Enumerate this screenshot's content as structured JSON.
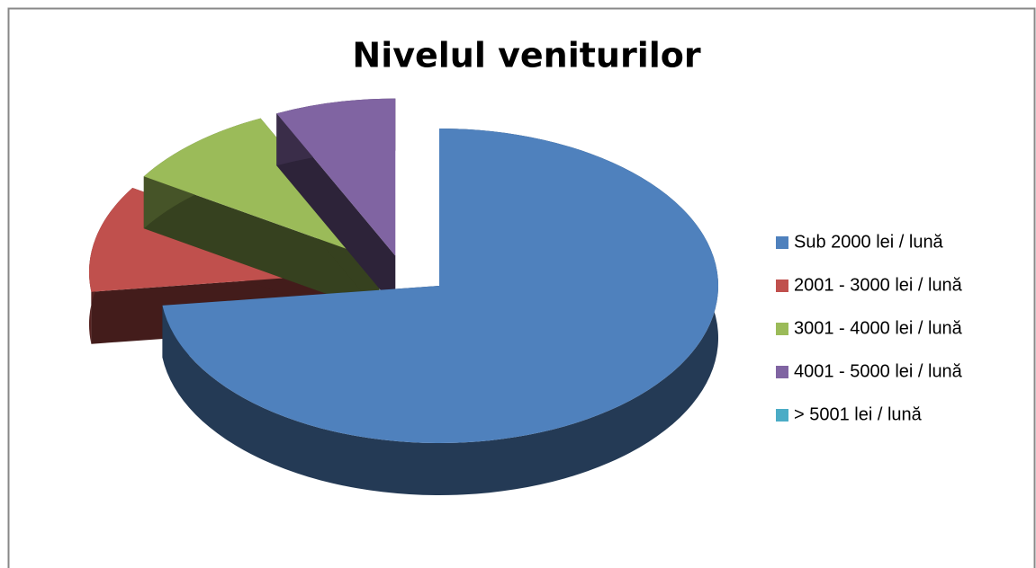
{
  "chart_data": {
    "type": "pie",
    "title": "Nivelul veniturilor",
    "categories": [
      "Sub 2000 lei / lună",
      "2001 - 3000 lei / lună",
      "3001 - 4000 lei / lună",
      "4001 - 5000 lei / lună",
      "> 5001 lei / lună"
    ],
    "values": [
      73,
      11,
      9,
      7,
      0
    ],
    "colors": [
      "#4f81bd",
      "#c0504d",
      "#9bbb59",
      "#8064a2",
      "#4bacc6"
    ],
    "legend": "right"
  }
}
